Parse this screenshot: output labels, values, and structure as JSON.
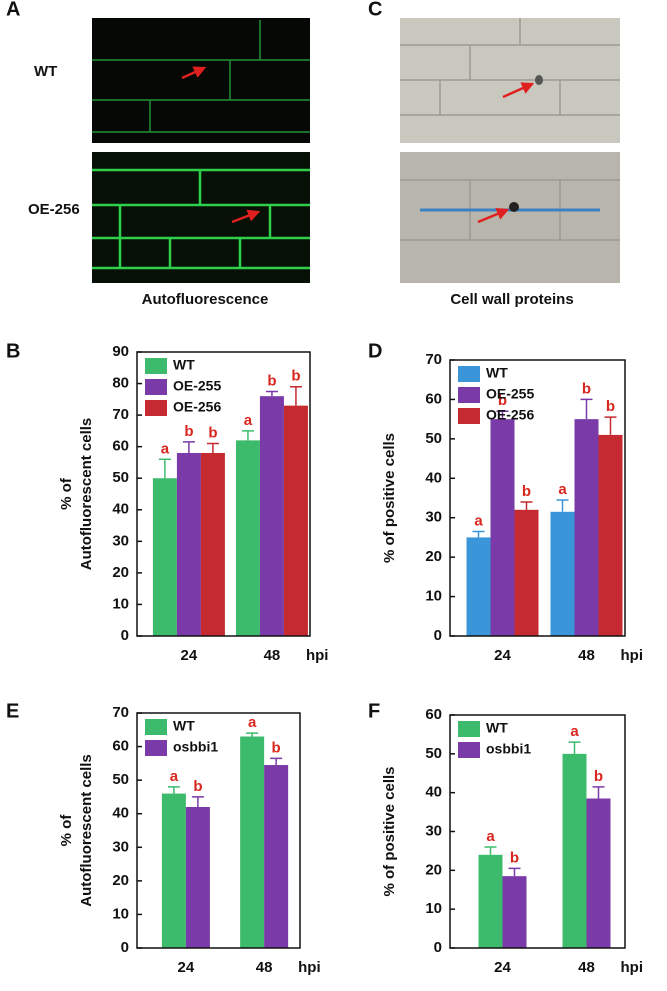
{
  "images": {
    "panels": [
      "A",
      "C"
    ],
    "row_labels": [
      "WT",
      "OE-256"
    ],
    "captions": [
      "Autofluorescence",
      "Cell wall proteins"
    ]
  },
  "chart_data": [
    {
      "type": "bar",
      "panel": "B",
      "ylabel": [
        "% of",
        "Autofluorescent cells"
      ],
      "xlabel": "hpi",
      "categories": [
        "24",
        "48"
      ],
      "ylim": [
        0,
        90
      ],
      "yticks": [
        0,
        10,
        20,
        30,
        40,
        50,
        60,
        70,
        80,
        90
      ],
      "legend": "top-left",
      "series": [
        {
          "name": "WT",
          "color": "#3dbb6c",
          "values": [
            50,
            62
          ],
          "errors": [
            6,
            3
          ],
          "letters": [
            "a",
            "a"
          ]
        },
        {
          "name": "OE-255",
          "color": "#7a3aa8",
          "values": [
            58,
            76
          ],
          "errors": [
            3.5,
            1.5
          ],
          "letters": [
            "b",
            "b"
          ]
        },
        {
          "name": "OE-256",
          "color": "#c42a2f",
          "values": [
            58,
            73
          ],
          "errors": [
            3,
            6
          ],
          "letters": [
            "b",
            "b"
          ]
        }
      ]
    },
    {
      "type": "bar",
      "panel": "D",
      "ylabel": [
        "% of positive cells"
      ],
      "xlabel": "hpi",
      "categories": [
        "24",
        "48"
      ],
      "ylim": [
        0,
        70
      ],
      "yticks": [
        0,
        10,
        20,
        30,
        40,
        50,
        60,
        70
      ],
      "legend": "top-left",
      "series": [
        {
          "name": "WT",
          "color": "#3a96d8",
          "values": [
            25,
            31.5
          ],
          "errors": [
            1.5,
            3
          ],
          "letters": [
            "a",
            "a"
          ]
        },
        {
          "name": "OE-255",
          "color": "#7a3aa8",
          "values": [
            55,
            55
          ],
          "errors": [
            2,
            5
          ],
          "letters": [
            "b",
            "b"
          ]
        },
        {
          "name": "OE-256",
          "color": "#c42a2f",
          "values": [
            32,
            51
          ],
          "errors": [
            2,
            4.5
          ],
          "letters": [
            "b",
            "b"
          ]
        }
      ]
    },
    {
      "type": "bar",
      "panel": "E",
      "ylabel": [
        "% of",
        "Autofluorescent cells"
      ],
      "xlabel": "hpi",
      "categories": [
        "24",
        "48"
      ],
      "ylim": [
        0,
        70
      ],
      "yticks": [
        0,
        10,
        20,
        30,
        40,
        50,
        60,
        70
      ],
      "legend": "top-left",
      "series": [
        {
          "name": "WT",
          "color": "#3dbb6c",
          "values": [
            46,
            63
          ],
          "errors": [
            2,
            1
          ],
          "letters": [
            "a",
            "a"
          ]
        },
        {
          "name": "osbbi1",
          "color": "#7a3aa8",
          "values": [
            42,
            54.5
          ],
          "errors": [
            3,
            2
          ],
          "letters": [
            "b",
            "b"
          ]
        }
      ]
    },
    {
      "type": "bar",
      "panel": "F",
      "ylabel": [
        "% of positive cells"
      ],
      "xlabel": "hpi",
      "categories": [
        "24",
        "48"
      ],
      "ylim": [
        0,
        60
      ],
      "yticks": [
        0,
        10,
        20,
        30,
        40,
        50,
        60
      ],
      "legend": "top-left",
      "series": [
        {
          "name": "WT",
          "color": "#3dbb6c",
          "values": [
            24,
            50
          ],
          "errors": [
            2,
            3
          ],
          "letters": [
            "a",
            "a"
          ]
        },
        {
          "name": "osbbi1",
          "color": "#7a3aa8",
          "values": [
            18.5,
            38.5
          ],
          "errors": [
            2,
            3
          ],
          "letters": [
            "b",
            "b"
          ]
        }
      ]
    }
  ]
}
